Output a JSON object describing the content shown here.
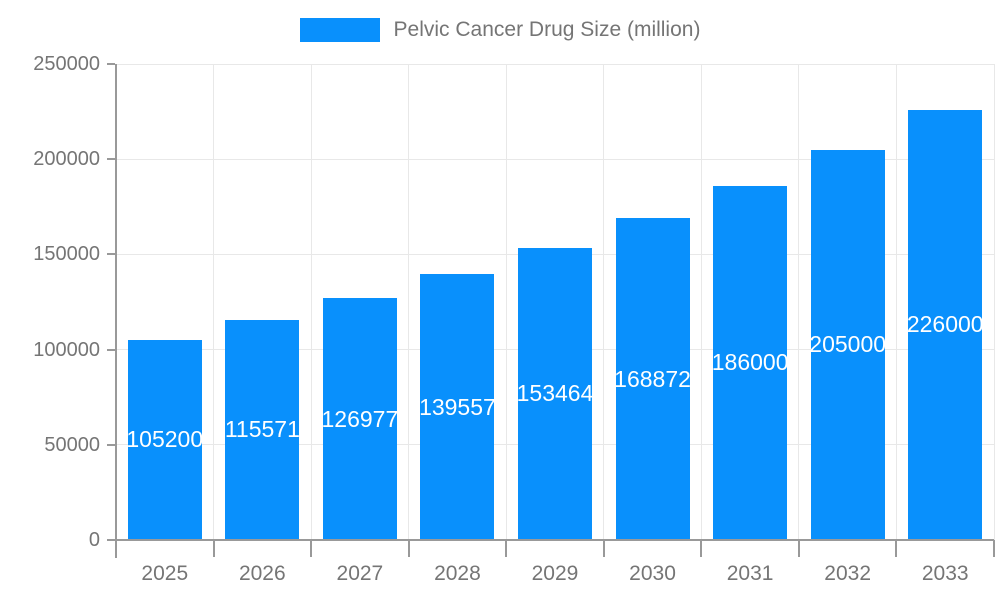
{
  "legend": {
    "label": "Pelvic Cancer Drug Size (million)"
  },
  "colors": {
    "bar": "#0990FC",
    "axis": "#999999",
    "grid": "#E8E8E8",
    "tick_label": "#757575",
    "bar_label": "#FFFFFF",
    "background": "#FFFFFF"
  },
  "chart_data": {
    "type": "bar",
    "title": "Pelvic Cancer Drug Size (million)",
    "categories": [
      "2025",
      "2026",
      "2027",
      "2028",
      "2029",
      "2030",
      "2031",
      "2032",
      "2033"
    ],
    "values": [
      105200,
      115571,
      126977,
      139557,
      153464,
      168872,
      186000,
      205000,
      226000
    ],
    "xlabel": "",
    "ylabel": "",
    "ylim": [
      0,
      250000
    ],
    "yticks": [
      0,
      50000,
      100000,
      150000,
      200000,
      250000
    ],
    "grid": true,
    "legend_position": "top",
    "bar_labels_visible": true,
    "bar_label_position": "center-inside-clipped"
  }
}
